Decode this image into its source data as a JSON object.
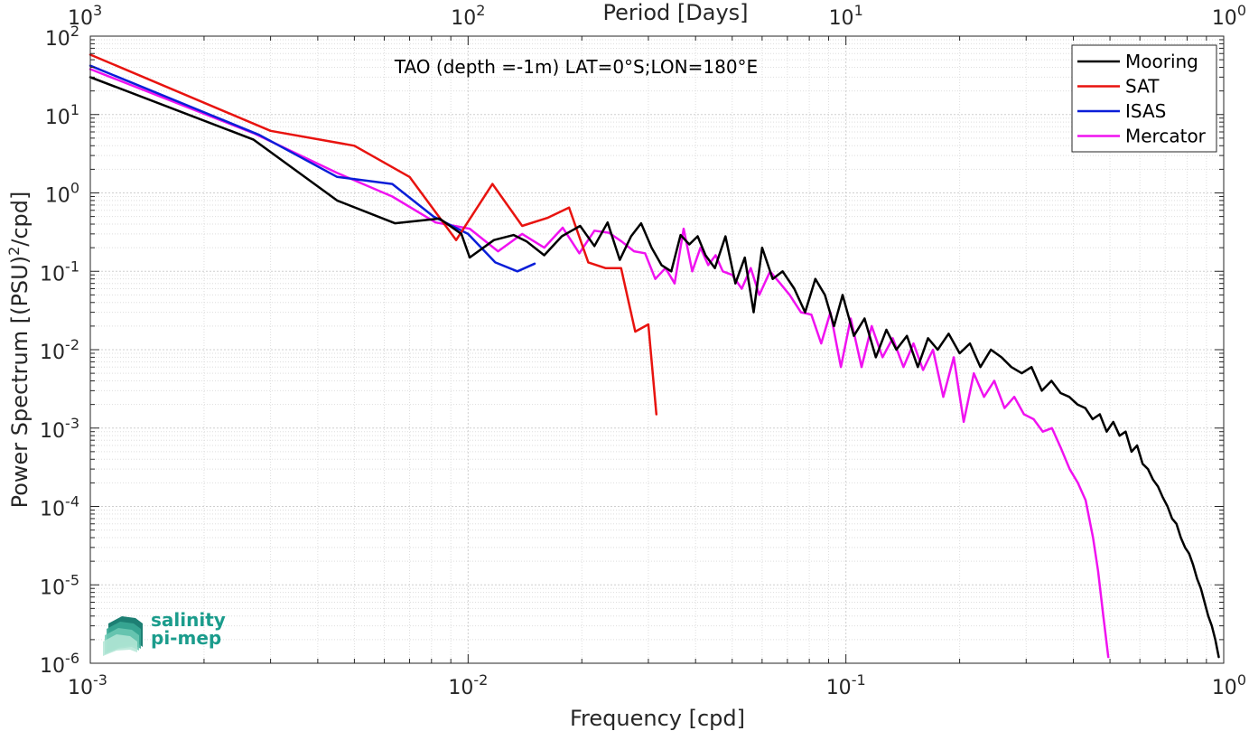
{
  "chart_data": {
    "type": "line",
    "xlabel": "Frequency [cpd]",
    "ylabel": "Power Spectrum [(PSU)²/cpd]",
    "top_xlabel": "Period [Days]",
    "annotation": "TAO (depth =-1m) LAT=0°S;LON=180°E",
    "xscale": "log",
    "yscale": "log",
    "xlim": [
      0.001,
      1
    ],
    "ylim": [
      1e-06,
      100
    ],
    "grid": true,
    "legend_position": "top-right",
    "x_ticks": [
      {
        "value": 0.001,
        "base": "10",
        "exp": "-3"
      },
      {
        "value": 0.01,
        "base": "10",
        "exp": "-2"
      },
      {
        "value": 0.1,
        "base": "10",
        "exp": "-1"
      },
      {
        "value": 1,
        "base": "10",
        "exp": "0"
      }
    ],
    "top_ticks": [
      {
        "value": 0.001,
        "base": "10",
        "exp": "3"
      },
      {
        "value": 0.01,
        "base": "10",
        "exp": "2"
      },
      {
        "value": 0.1,
        "base": "10",
        "exp": "1"
      },
      {
        "value": 1,
        "base": "10",
        "exp": "0"
      }
    ],
    "y_ticks": [
      {
        "value": 100,
        "base": "10",
        "exp": "2"
      },
      {
        "value": 10,
        "base": "10",
        "exp": "1"
      },
      {
        "value": 1,
        "base": "10",
        "exp": "0"
      },
      {
        "value": 0.1,
        "base": "10",
        "exp": "-1"
      },
      {
        "value": 0.01,
        "base": "10",
        "exp": "-2"
      },
      {
        "value": 0.001,
        "base": "10",
        "exp": "-3"
      },
      {
        "value": 0.0001,
        "base": "10",
        "exp": "-4"
      },
      {
        "value": 1e-05,
        "base": "10",
        "exp": "-5"
      },
      {
        "value": 1e-06,
        "base": "10",
        "exp": "-6"
      }
    ],
    "series": [
      {
        "name": "Mooring",
        "color": "#000000",
        "x": [
          0.001,
          0.0027,
          0.0045,
          0.0064,
          0.0084,
          0.0096,
          0.0101,
          0.0117,
          0.0132,
          0.0143,
          0.0159,
          0.0177,
          0.0198,
          0.0216,
          0.0234,
          0.0252,
          0.027,
          0.0287,
          0.0306,
          0.0325,
          0.0345,
          0.0365,
          0.0385,
          0.0405,
          0.0425,
          0.045,
          0.048,
          0.051,
          0.054,
          0.057,
          0.06,
          0.064,
          0.068,
          0.073,
          0.078,
          0.083,
          0.088,
          0.093,
          0.098,
          0.105,
          0.112,
          0.12,
          0.128,
          0.136,
          0.145,
          0.155,
          0.165,
          0.175,
          0.187,
          0.2,
          0.213,
          0.227,
          0.242,
          0.258,
          0.274,
          0.292,
          0.31,
          0.33,
          0.35,
          0.37,
          0.39,
          0.41,
          0.43,
          0.45,
          0.47,
          0.49,
          0.51,
          0.53,
          0.55,
          0.57,
          0.59,
          0.61,
          0.63,
          0.65,
          0.67,
          0.69,
          0.71,
          0.73,
          0.75,
          0.77,
          0.79,
          0.81,
          0.83,
          0.85,
          0.87,
          0.89,
          0.91,
          0.93,
          0.95,
          0.97
        ],
        "y": [
          30,
          4.8,
          0.8,
          0.41,
          0.47,
          0.3,
          0.15,
          0.25,
          0.29,
          0.24,
          0.16,
          0.28,
          0.38,
          0.21,
          0.42,
          0.14,
          0.28,
          0.41,
          0.2,
          0.12,
          0.1,
          0.29,
          0.22,
          0.28,
          0.16,
          0.11,
          0.28,
          0.07,
          0.15,
          0.03,
          0.2,
          0.08,
          0.1,
          0.06,
          0.03,
          0.08,
          0.05,
          0.02,
          0.05,
          0.015,
          0.025,
          0.008,
          0.018,
          0.01,
          0.015,
          0.006,
          0.014,
          0.01,
          0.016,
          0.009,
          0.012,
          0.006,
          0.01,
          0.008,
          0.006,
          0.005,
          0.006,
          0.003,
          0.004,
          0.0028,
          0.0025,
          0.002,
          0.0018,
          0.0013,
          0.0015,
          0.0009,
          0.0012,
          0.0008,
          0.0009,
          0.0005,
          0.0006,
          0.00035,
          0.0003,
          0.00022,
          0.00018,
          0.00013,
          0.0001,
          7e-05,
          6e-05,
          4e-05,
          3e-05,
          2.5e-05,
          1.8e-05,
          1.2e-05,
          9e-06,
          6e-06,
          4e-06,
          3e-06,
          2e-06,
          1.2e-06
        ]
      },
      {
        "name": "SAT",
        "color": "#e8130f",
        "x": [
          0.001,
          0.003,
          0.005,
          0.007,
          0.0093,
          0.0116,
          0.0139,
          0.0162,
          0.0185,
          0.0208,
          0.0231,
          0.0254,
          0.0277,
          0.03,
          0.0315
        ],
        "y": [
          58,
          6.2,
          4,
          1.6,
          0.25,
          1.3,
          0.38,
          0.48,
          0.65,
          0.13,
          0.11,
          0.11,
          0.017,
          0.021,
          0.0015
        ]
      },
      {
        "name": "ISAS",
        "color": "#0a1ed8",
        "x": [
          0.001,
          0.0028,
          0.0045,
          0.0063,
          0.0081,
          0.01,
          0.0118,
          0.0135,
          0.015
        ],
        "y": [
          42,
          5.5,
          1.6,
          1.3,
          0.5,
          0.3,
          0.13,
          0.1,
          0.125
        ]
      },
      {
        "name": "Mercator",
        "color": "#f012f0",
        "x": [
          0.001,
          0.0027,
          0.0045,
          0.0063,
          0.0082,
          0.0101,
          0.012,
          0.0139,
          0.0159,
          0.0178,
          0.0197,
          0.0216,
          0.0236,
          0.0255,
          0.0275,
          0.0294,
          0.0313,
          0.0333,
          0.0352,
          0.0372,
          0.0392,
          0.0412,
          0.0432,
          0.0452,
          0.0472,
          0.05,
          0.053,
          0.056,
          0.059,
          0.063,
          0.067,
          0.071,
          0.076,
          0.081,
          0.086,
          0.091,
          0.097,
          0.103,
          0.11,
          0.117,
          0.125,
          0.133,
          0.142,
          0.151,
          0.16,
          0.17,
          0.181,
          0.193,
          0.205,
          0.218,
          0.232,
          0.247,
          0.263,
          0.279,
          0.296,
          0.314,
          0.332,
          0.351,
          0.371,
          0.391,
          0.411,
          0.431,
          0.451,
          0.465,
          0.48,
          0.495
        ],
        "y": [
          38,
          5.8,
          1.8,
          0.9,
          0.42,
          0.35,
          0.18,
          0.3,
          0.2,
          0.36,
          0.17,
          0.33,
          0.31,
          0.24,
          0.18,
          0.17,
          0.08,
          0.11,
          0.07,
          0.35,
          0.1,
          0.2,
          0.12,
          0.16,
          0.1,
          0.09,
          0.06,
          0.11,
          0.05,
          0.1,
          0.07,
          0.05,
          0.03,
          0.028,
          0.012,
          0.03,
          0.006,
          0.025,
          0.006,
          0.02,
          0.008,
          0.014,
          0.006,
          0.012,
          0.0055,
          0.01,
          0.0025,
          0.008,
          0.0012,
          0.005,
          0.0025,
          0.004,
          0.0018,
          0.0025,
          0.0015,
          0.0013,
          0.0009,
          0.001,
          0.00055,
          0.0003,
          0.0002,
          0.00012,
          4e-05,
          1.5e-05,
          4e-06,
          1.2e-06
        ]
      }
    ]
  },
  "logo": {
    "line1": "salinity",
    "line2": "pi-mep"
  }
}
